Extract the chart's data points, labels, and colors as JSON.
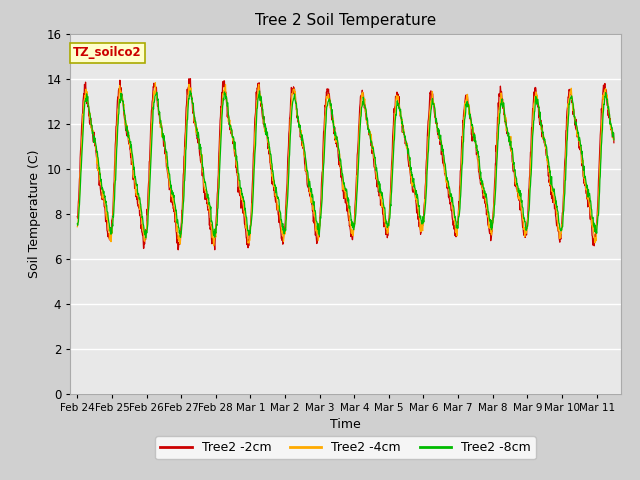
{
  "title": "Tree 2 Soil Temperature",
  "xlabel": "Time",
  "ylabel": "Soil Temperature (C)",
  "ylim": [
    0,
    16
  ],
  "yticks": [
    0,
    2,
    4,
    6,
    8,
    10,
    12,
    14,
    16
  ],
  "x_labels": [
    "Feb 24",
    "Feb 25",
    "Feb 26",
    "Feb 27",
    "Feb 28",
    "Mar 1",
    "Mar 2",
    "Mar 3",
    "Mar 4",
    "Mar 5",
    "Mar 6",
    "Mar 7",
    "Mar 8",
    "Mar 9",
    "Mar 10",
    "Mar 11"
  ],
  "color_2cm": "#cc0000",
  "color_4cm": "#ffaa00",
  "color_8cm": "#00bb00",
  "legend_labels": [
    "Tree2 -2cm",
    "Tree2 -4cm",
    "Tree2 -8cm"
  ],
  "annotation_text": "TZ_soilco2",
  "annotation_bg": "#ffffcc",
  "annotation_border": "#aaaa00",
  "plot_bg": "#e8e8e8",
  "outer_bg": "#d0d0d0",
  "grid_color": "#ffffff",
  "figsize": [
    6.4,
    4.8
  ],
  "dpi": 100
}
